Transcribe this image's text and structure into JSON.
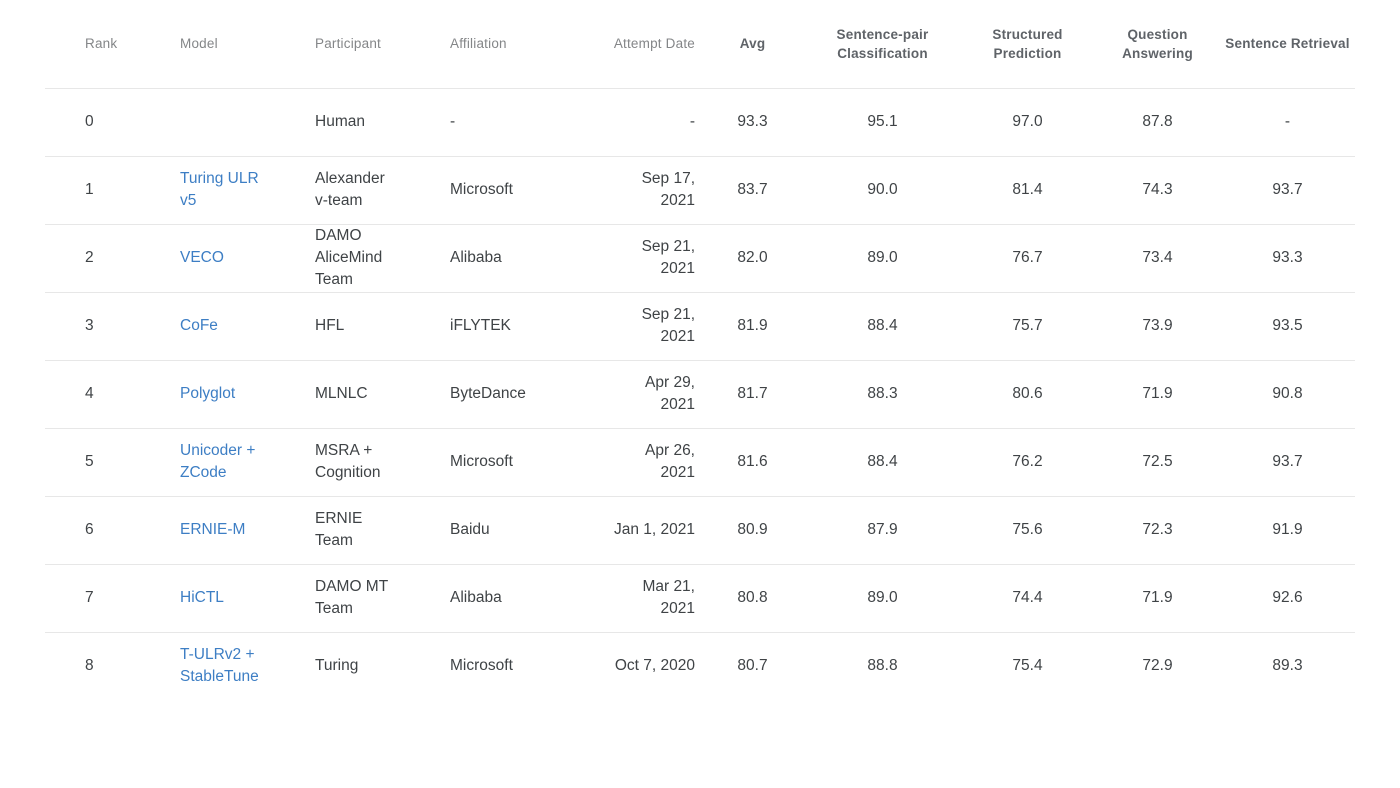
{
  "colors": {
    "link": "#3d7ec4",
    "body-text": "#3f4346",
    "header-muted": "#848688",
    "header-strong": "#5f6368",
    "divider": "#e7e7e7",
    "bg": "#ffffff"
  },
  "table": {
    "columns": {
      "rank": "Rank",
      "model": "Model",
      "participant": "Participant",
      "affiliation": "Affiliation",
      "attempt_date": "Attempt Date",
      "avg": "Avg",
      "sentence_pair_classification": "Sentence-pair Classification",
      "structured_prediction": "Structured Prediction",
      "question_answering": "Question Answering",
      "sentence_retrieval": "Sentence Retrieval"
    },
    "rows": [
      {
        "rank": "0",
        "model": "",
        "participant": "Human",
        "affiliation": "-",
        "attempt_date": "-",
        "avg": "93.3",
        "sentence_pair_classification": "95.1",
        "structured_prediction": "97.0",
        "question_answering": "87.8",
        "sentence_retrieval": "-"
      },
      {
        "rank": "1",
        "model": "Turing ULR v5",
        "participant": "Alexander v-team",
        "affiliation": "Microsoft",
        "attempt_date": "Sep 17,\n2021",
        "avg": "83.7",
        "sentence_pair_classification": "90.0",
        "structured_prediction": "81.4",
        "question_answering": "74.3",
        "sentence_retrieval": "93.7"
      },
      {
        "rank": "2",
        "model": "VECO",
        "participant": "DAMO AliceMind Team",
        "affiliation": "Alibaba",
        "attempt_date": "Sep 21,\n2021",
        "avg": "82.0",
        "sentence_pair_classification": "89.0",
        "structured_prediction": "76.7",
        "question_answering": "73.4",
        "sentence_retrieval": "93.3"
      },
      {
        "rank": "3",
        "model": "CoFe",
        "participant": "HFL",
        "affiliation": "iFLYTEK",
        "attempt_date": "Sep 21,\n2021",
        "avg": "81.9",
        "sentence_pair_classification": "88.4",
        "structured_prediction": "75.7",
        "question_answering": "73.9",
        "sentence_retrieval": "93.5"
      },
      {
        "rank": "4",
        "model": "Polyglot",
        "participant": "MLNLC",
        "affiliation": "ByteDance",
        "attempt_date": "Apr 29,\n2021",
        "avg": "81.7",
        "sentence_pair_classification": "88.3",
        "structured_prediction": "80.6",
        "question_answering": "71.9",
        "sentence_retrieval": "90.8"
      },
      {
        "rank": "5",
        "model": "Unicoder + ZCode",
        "participant": "MSRA + Cognition",
        "affiliation": "Microsoft",
        "attempt_date": "Apr 26,\n2021",
        "avg": "81.6",
        "sentence_pair_classification": "88.4",
        "structured_prediction": "76.2",
        "question_answering": "72.5",
        "sentence_retrieval": "93.7"
      },
      {
        "rank": "6",
        "model": "ERNIE-M",
        "participant": "ERNIE Team",
        "affiliation": "Baidu",
        "attempt_date": "Jan 1, 2021",
        "avg": "80.9",
        "sentence_pair_classification": "87.9",
        "structured_prediction": "75.6",
        "question_answering": "72.3",
        "sentence_retrieval": "91.9"
      },
      {
        "rank": "7",
        "model": "HiCTL",
        "participant": "DAMO MT Team",
        "affiliation": "Alibaba",
        "attempt_date": "Mar 21,\n2021",
        "avg": "80.8",
        "sentence_pair_classification": "89.0",
        "structured_prediction": "74.4",
        "question_answering": "71.9",
        "sentence_retrieval": "92.6"
      },
      {
        "rank": "8",
        "model": "T-ULRv2 + StableTune",
        "participant": "Turing",
        "affiliation": "Microsoft",
        "attempt_date": "Oct 7, 2020",
        "avg": "80.7",
        "sentence_pair_classification": "88.8",
        "structured_prediction": "75.4",
        "question_answering": "72.9",
        "sentence_retrieval": "89.3"
      }
    ]
  }
}
